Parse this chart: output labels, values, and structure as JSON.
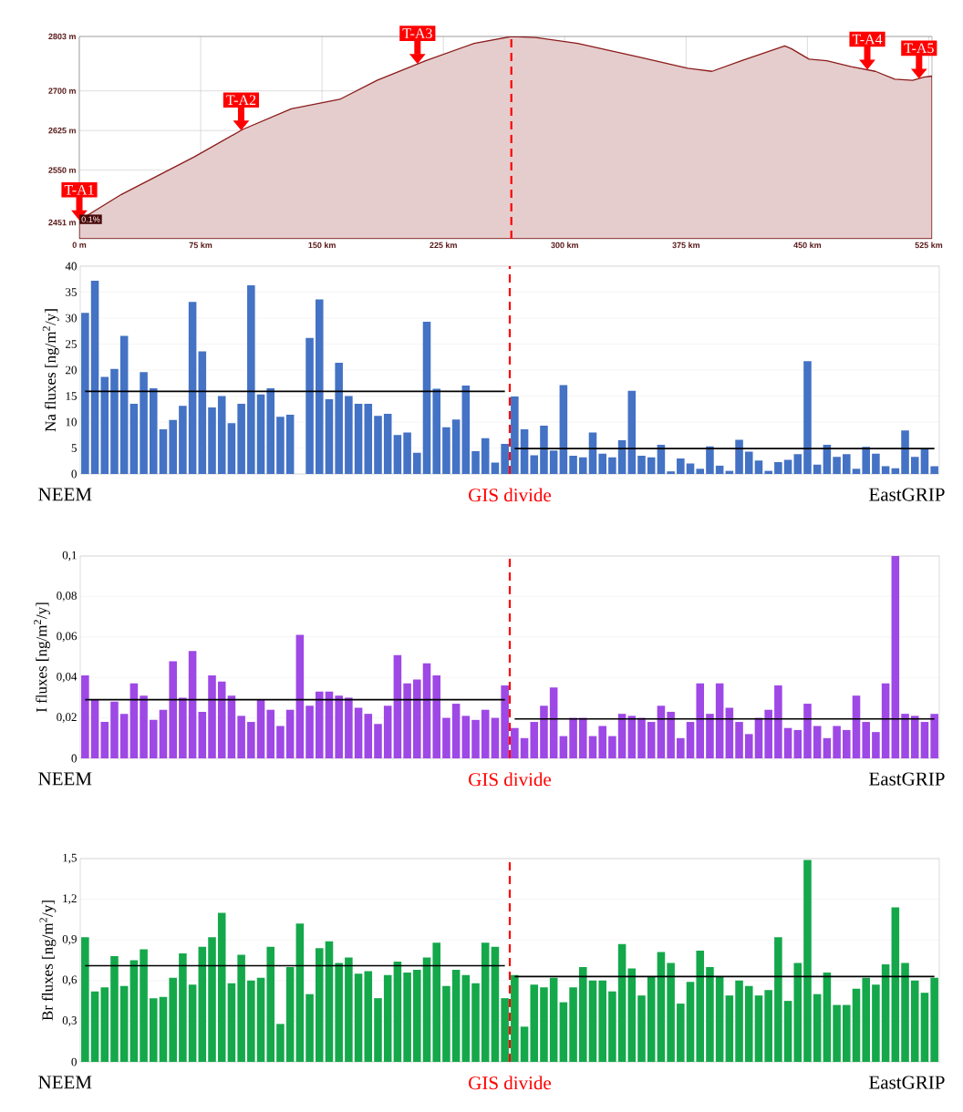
{
  "chart_data": [
    {
      "type": "area",
      "x": [
        0,
        26,
        71,
        101,
        131,
        161,
        184,
        214,
        244,
        267,
        282,
        308,
        346,
        376,
        391,
        410,
        436,
        440,
        451,
        462,
        477,
        492,
        504,
        515,
        522,
        527
      ],
      "series": [
        {
          "color": "#8b1a1a",
          "values": [
            2455,
            2504,
            2575,
            2627,
            2666,
            2684,
            2720,
            2757,
            2790,
            2803,
            2801,
            2790,
            2764,
            2743,
            2737,
            2758,
            2785,
            2780,
            2760,
            2757,
            2746,
            2737,
            2722,
            2720,
            2726,
            2728
          ]
        }
      ],
      "xlim": [
        0,
        527
      ],
      "ylim": [
        2420,
        2803
      ],
      "xticks": [
        {
          "value": 0,
          "label": "0 m"
        },
        {
          "value": 75,
          "label": "75 km"
        },
        {
          "value": 150,
          "label": "150 km"
        },
        {
          "value": 225,
          "label": "225 km"
        },
        {
          "value": 300,
          "label": "300 km"
        },
        {
          "value": 375,
          "label": "375 km"
        },
        {
          "value": 450,
          "label": "450 km"
        },
        {
          "value": 525,
          "label": "525 km"
        }
      ],
      "yticks": [
        {
          "value": 2451,
          "label": "2451 m"
        },
        {
          "value": 2550,
          "label": "2550 m"
        },
        {
          "value": 2625,
          "label": "2625 m"
        },
        {
          "value": 2700,
          "label": "2700 m"
        },
        {
          "value": 2803,
          "label": "2803 m"
        }
      ],
      "grid": true,
      "ref_lines": [
        {
          "axis": "x",
          "value": 267,
          "color": "#ff0000",
          "line_style": "dashed"
        }
      ],
      "annotations": [
        {
          "text": "T-A1",
          "x": 0,
          "y": 2455
        },
        {
          "text": "T-A2",
          "x": 100,
          "y": 2625
        },
        {
          "text": "T-A3",
          "x": 209,
          "y": 2751
        },
        {
          "text": "T-A4",
          "x": 487,
          "y": 2740
        },
        {
          "text": "T-A5",
          "x": 519,
          "y": 2723
        },
        "0.1%"
      ]
    },
    {
      "type": "bar",
      "ylabel": "Na fluxes [ng/m$^{2}$/y]",
      "categories": [
        null,
        null,
        null,
        null,
        null,
        null,
        null,
        null,
        null,
        null,
        null,
        null,
        null,
        null,
        null,
        null,
        null,
        null,
        null,
        null,
        null,
        null,
        null,
        null,
        null,
        null,
        null,
        null,
        null,
        null,
        null,
        null,
        null,
        null,
        null,
        null,
        null,
        null,
        null,
        null,
        null,
        null,
        null,
        null,
        null,
        null,
        null,
        null,
        null,
        null,
        null,
        null,
        null,
        null,
        null,
        null,
        null,
        null,
        null,
        null,
        null,
        null,
        null,
        null,
        null,
        null,
        null,
        null,
        null,
        null,
        null,
        null,
        null,
        null,
        null,
        null,
        null,
        null,
        null,
        null,
        null,
        null,
        null,
        null,
        null,
        null,
        null,
        null
      ],
      "series": [
        {
          "type": "bar",
          "color": "#4472c4",
          "values": [
            31,
            37.2,
            18.7,
            20.2,
            26.6,
            13.5,
            19.6,
            16.5,
            8.6,
            10.4,
            13.1,
            33.1,
            23.6,
            12.8,
            15,
            9.8,
            13.5,
            36.3,
            15.3,
            16.5,
            11,
            11.4,
            null,
            26.2,
            33.6,
            14.4,
            21.4,
            15,
            13.5,
            13.5,
            11.2,
            11.6,
            7.5,
            8,
            4.1,
            29.3,
            16.4,
            9,
            10.5,
            17,
            4.4,
            6.9,
            2.2,
            5.8,
            14.9,
            8.6,
            3.6,
            9.3,
            4.5,
            17.1,
            3.5,
            3.2,
            8,
            3.9,
            3.2,
            6.5,
            16,
            3.5,
            3.2,
            5.6,
            0.5,
            3,
            2,
            1,
            5.3,
            1.6,
            0.6,
            6.6,
            4.3,
            2.6,
            0.6,
            2.3,
            2.7,
            3.8,
            21.7,
            1.8,
            5.6,
            3.3,
            3.8,
            1,
            5.2,
            3.9,
            1.5,
            1.1,
            8.4,
            3.3,
            4.9,
            1.5
          ]
        },
        {
          "type": "line",
          "color": "#000000",
          "values": [
            15.9,
            15.9,
            15.9,
            15.9,
            15.9,
            15.9,
            15.9,
            15.9,
            15.9,
            15.9,
            15.9,
            15.9,
            15.9,
            15.9,
            15.9,
            15.9,
            15.9,
            15.9,
            15.9,
            15.9,
            15.9,
            15.9,
            15.9,
            15.9,
            15.9,
            15.9,
            15.9,
            15.9,
            15.9,
            15.9,
            15.9,
            15.9,
            15.9,
            15.9,
            15.9,
            15.9,
            15.9,
            15.9,
            15.9,
            15.9,
            15.9,
            15.9,
            15.9,
            15.9,
            null,
            null,
            null,
            null,
            null,
            null,
            null,
            null,
            null,
            null,
            null,
            null,
            null,
            null,
            null,
            null,
            null,
            null,
            null,
            null,
            null,
            null,
            null,
            null,
            null,
            null,
            null,
            null,
            null,
            null,
            null,
            null,
            null,
            null,
            null,
            null,
            null,
            null,
            null,
            null,
            null,
            null,
            null,
            null
          ]
        },
        {
          "type": "line",
          "color": "#000000",
          "values": [
            null,
            null,
            null,
            null,
            null,
            null,
            null,
            null,
            null,
            null,
            null,
            null,
            null,
            null,
            null,
            null,
            null,
            null,
            null,
            null,
            null,
            null,
            null,
            null,
            null,
            null,
            null,
            null,
            null,
            null,
            null,
            null,
            null,
            null,
            null,
            null,
            null,
            null,
            null,
            null,
            null,
            null,
            null,
            null,
            4.9,
            4.9,
            4.9,
            4.9,
            4.9,
            4.9,
            4.9,
            4.9,
            4.9,
            4.9,
            4.9,
            4.9,
            4.9,
            4.9,
            4.9,
            4.9,
            4.9,
            4.9,
            4.9,
            4.9,
            4.9,
            4.9,
            4.9,
            4.9,
            4.9,
            4.9,
            4.9,
            4.9,
            4.9,
            4.9,
            4.9,
            4.9,
            4.9,
            4.9,
            4.9,
            4.9,
            4.9,
            4.9,
            4.9,
            4.9,
            4.9,
            4.9,
            4.9,
            4.9
          ]
        }
      ],
      "ylim": [
        0,
        40
      ],
      "yticks": [
        0,
        5,
        10,
        15,
        20,
        25,
        30,
        35,
        40
      ],
      "grid": "y",
      "annotations": [
        "NEEM",
        "GIS divide",
        "EastGRIP"
      ]
    },
    {
      "type": "bar",
      "ylabel": "I fluxes [ng/m$^{2}$/y]",
      "categories": [
        null,
        null,
        null,
        null,
        null,
        null,
        null,
        null,
        null,
        null,
        null,
        null,
        null,
        null,
        null,
        null,
        null,
        null,
        null,
        null,
        null,
        null,
        null,
        null,
        null,
        null,
        null,
        null,
        null,
        null,
        null,
        null,
        null,
        null,
        null,
        null,
        null,
        null,
        null,
        null,
        null,
        null,
        null,
        null,
        null,
        null,
        null,
        null,
        null,
        null,
        null,
        null,
        null,
        null,
        null,
        null,
        null,
        null,
        null,
        null,
        null,
        null,
        null,
        null,
        null,
        null,
        null,
        null,
        null,
        null,
        null,
        null,
        null,
        null,
        null,
        null,
        null,
        null,
        null,
        null,
        null,
        null,
        null,
        null,
        null,
        null,
        null,
        null
      ],
      "series": [
        {
          "type": "bar",
          "color": "#9e48e6",
          "values": [
            0.041,
            0.029,
            0.018,
            0.028,
            0.022,
            0.037,
            0.031,
            0.019,
            0.024,
            0.048,
            0.03,
            0.053,
            0.023,
            0.041,
            0.038,
            0.031,
            0.021,
            0.018,
            0.029,
            0.024,
            0.016,
            0.024,
            0.061,
            0.026,
            0.033,
            0.033,
            0.031,
            0.03,
            0.025,
            0.022,
            0.017,
            0.026,
            0.051,
            0.037,
            0.039,
            0.047,
            0.041,
            0.02,
            0.027,
            0.021,
            0.019,
            0.024,
            0.02,
            0.036,
            0.015,
            0.01,
            0.018,
            0.026,
            0.035,
            0.011,
            0.02,
            0.02,
            0.011,
            0.016,
            0.011,
            0.022,
            0.021,
            0.02,
            0.018,
            0.026,
            0.023,
            0.01,
            0.018,
            0.037,
            0.022,
            0.037,
            0.025,
            0.018,
            0.012,
            0.02,
            0.024,
            0.036,
            0.015,
            0.014,
            0.027,
            0.016,
            0.01,
            0.016,
            0.014,
            0.031,
            0.018,
            0.013,
            0.037,
            0.1,
            0.022,
            0.021,
            0.018,
            0.022
          ]
        },
        {
          "type": "line",
          "color": "#000000",
          "values": [
            0.029,
            0.029,
            0.029,
            0.029,
            0.029,
            0.029,
            0.029,
            0.029,
            0.029,
            0.029,
            0.029,
            0.029,
            0.029,
            0.029,
            0.029,
            0.029,
            0.029,
            0.029,
            0.029,
            0.029,
            0.029,
            0.029,
            0.029,
            0.029,
            0.029,
            0.029,
            0.029,
            0.029,
            0.029,
            0.029,
            0.029,
            0.029,
            0.029,
            0.029,
            0.029,
            0.029,
            0.029,
            0.029,
            0.029,
            0.029,
            0.029,
            0.029,
            0.029,
            0.029,
            null,
            null,
            null,
            null,
            null,
            null,
            null,
            null,
            null,
            null,
            null,
            null,
            null,
            null,
            null,
            null,
            null,
            null,
            null,
            null,
            null,
            null,
            null,
            null,
            null,
            null,
            null,
            null,
            null,
            null,
            null,
            null,
            null,
            null,
            null,
            null,
            null,
            null,
            null,
            null,
            null,
            null,
            null,
            null
          ]
        },
        {
          "type": "line",
          "color": "#000000",
          "values": [
            null,
            null,
            null,
            null,
            null,
            null,
            null,
            null,
            null,
            null,
            null,
            null,
            null,
            null,
            null,
            null,
            null,
            null,
            null,
            null,
            null,
            null,
            null,
            null,
            null,
            null,
            null,
            null,
            null,
            null,
            null,
            null,
            null,
            null,
            null,
            null,
            null,
            null,
            null,
            null,
            null,
            null,
            null,
            null,
            0.0195,
            0.0195,
            0.0195,
            0.0195,
            0.0195,
            0.0195,
            0.0195,
            0.0195,
            0.0195,
            0.0195,
            0.0195,
            0.0195,
            0.0195,
            0.0195,
            0.0195,
            0.0195,
            0.0195,
            0.0195,
            0.0195,
            0.0195,
            0.0195,
            0.0195,
            0.0195,
            0.0195,
            0.0195,
            0.0195,
            0.0195,
            0.0195,
            0.0195,
            0.0195,
            0.0195,
            0.0195,
            0.0195,
            0.0195,
            0.0195,
            0.0195,
            0.0195,
            0.0195,
            0.0195,
            0.0195,
            0.0195,
            0.0195,
            0.0195,
            0.0195
          ]
        }
      ],
      "ylim": [
        0,
        0.1
      ],
      "yticks": [
        0,
        {
          "value": 0.02,
          "label": "0,02"
        },
        {
          "value": 0.04,
          "label": "0,04"
        },
        {
          "value": 0.06,
          "label": "0,06"
        },
        {
          "value": 0.08,
          "label": "0,08"
        },
        {
          "value": 0.1,
          "label": "0,1"
        }
      ],
      "grid": "y",
      "annotations": [
        "NEEM",
        "GIS divide",
        "EastGRIP"
      ]
    },
    {
      "type": "bar",
      "ylabel": "Br fluxes [ng/m$^{2}$/y]",
      "categories": [
        null,
        null,
        null,
        null,
        null,
        null,
        null,
        null,
        null,
        null,
        null,
        null,
        null,
        null,
        null,
        null,
        null,
        null,
        null,
        null,
        null,
        null,
        null,
        null,
        null,
        null,
        null,
        null,
        null,
        null,
        null,
        null,
        null,
        null,
        null,
        null,
        null,
        null,
        null,
        null,
        null,
        null,
        null,
        null,
        null,
        null,
        null,
        null,
        null,
        null,
        null,
        null,
        null,
        null,
        null,
        null,
        null,
        null,
        null,
        null,
        null,
        null,
        null,
        null,
        null,
        null,
        null,
        null,
        null,
        null,
        null,
        null,
        null,
        null,
        null,
        null,
        null,
        null,
        null,
        null,
        null,
        null,
        null,
        null,
        null,
        null,
        null,
        null
      ],
      "series": [
        {
          "type": "bar",
          "color": "#14a84b",
          "values": [
            0.92,
            0.52,
            0.55,
            0.78,
            0.56,
            0.75,
            0.83,
            0.47,
            0.48,
            0.62,
            0.8,
            0.57,
            0.85,
            0.92,
            1.1,
            0.58,
            0.79,
            0.6,
            0.62,
            0.85,
            0.28,
            0.7,
            1.02,
            0.5,
            0.84,
            0.89,
            0.73,
            0.77,
            0.65,
            0.67,
            0.47,
            0.64,
            0.74,
            0.66,
            0.68,
            0.77,
            0.88,
            0.56,
            0.68,
            0.64,
            0.58,
            0.88,
            0.85,
            0.47,
            0.64,
            0.26,
            0.57,
            0.55,
            0.62,
            0.44,
            0.55,
            0.7,
            0.6,
            0.6,
            0.52,
            0.87,
            0.69,
            0.49,
            0.63,
            0.81,
            0.73,
            0.43,
            0.59,
            0.82,
            0.7,
            0.63,
            0.49,
            0.6,
            0.56,
            0.49,
            0.53,
            0.92,
            0.45,
            0.73,
            1.49,
            0.5,
            0.66,
            0.42,
            0.42,
            0.54,
            0.62,
            0.57,
            0.72,
            1.14,
            0.73,
            0.6,
            0.51,
            0.62
          ]
        },
        {
          "type": "line",
          "color": "#000000",
          "values": [
            0.71,
            0.71,
            0.71,
            0.71,
            0.71,
            0.71,
            0.71,
            0.71,
            0.71,
            0.71,
            0.71,
            0.71,
            0.71,
            0.71,
            0.71,
            0.71,
            0.71,
            0.71,
            0.71,
            0.71,
            0.71,
            0.71,
            0.71,
            0.71,
            0.71,
            0.71,
            0.71,
            0.71,
            0.71,
            0.71,
            0.71,
            0.71,
            0.71,
            0.71,
            0.71,
            0.71,
            0.71,
            0.71,
            0.71,
            0.71,
            0.71,
            0.71,
            0.71,
            0.71,
            null,
            null,
            null,
            null,
            null,
            null,
            null,
            null,
            null,
            null,
            null,
            null,
            null,
            null,
            null,
            null,
            null,
            null,
            null,
            null,
            null,
            null,
            null,
            null,
            null,
            null,
            null,
            null,
            null,
            null,
            null,
            null,
            null,
            null,
            null,
            null,
            null,
            null,
            null,
            null,
            null,
            null,
            null,
            null
          ]
        },
        {
          "type": "line",
          "color": "#000000",
          "values": [
            null,
            null,
            null,
            null,
            null,
            null,
            null,
            null,
            null,
            null,
            null,
            null,
            null,
            null,
            null,
            null,
            null,
            null,
            null,
            null,
            null,
            null,
            null,
            null,
            null,
            null,
            null,
            null,
            null,
            null,
            null,
            null,
            null,
            null,
            null,
            null,
            null,
            null,
            null,
            null,
            null,
            null,
            null,
            null,
            0.63,
            0.63,
            0.63,
            0.63,
            0.63,
            0.63,
            0.63,
            0.63,
            0.63,
            0.63,
            0.63,
            0.63,
            0.63,
            0.63,
            0.63,
            0.63,
            0.63,
            0.63,
            0.63,
            0.63,
            0.63,
            0.63,
            0.63,
            0.63,
            0.63,
            0.63,
            0.63,
            0.63,
            0.63,
            0.63,
            0.63,
            0.63,
            0.63,
            0.63,
            0.63,
            0.63,
            0.63,
            0.63,
            0.63,
            0.63,
            0.63,
            0.63,
            0.63,
            0.63
          ]
        }
      ],
      "ylim": [
        0,
        1.5
      ],
      "yticks": [
        0,
        {
          "value": 0.3,
          "label": "0,3"
        },
        {
          "value": 0.6,
          "label": "0,6"
        },
        {
          "value": 0.9,
          "label": "0,9"
        },
        {
          "value": 1.2,
          "label": "1,2"
        },
        {
          "value": 1.5,
          "label": "1,5"
        }
      ],
      "grid": "y",
      "annotations": [
        "NEEM",
        "GIS divide",
        "EastGRIP"
      ]
    }
  ]
}
